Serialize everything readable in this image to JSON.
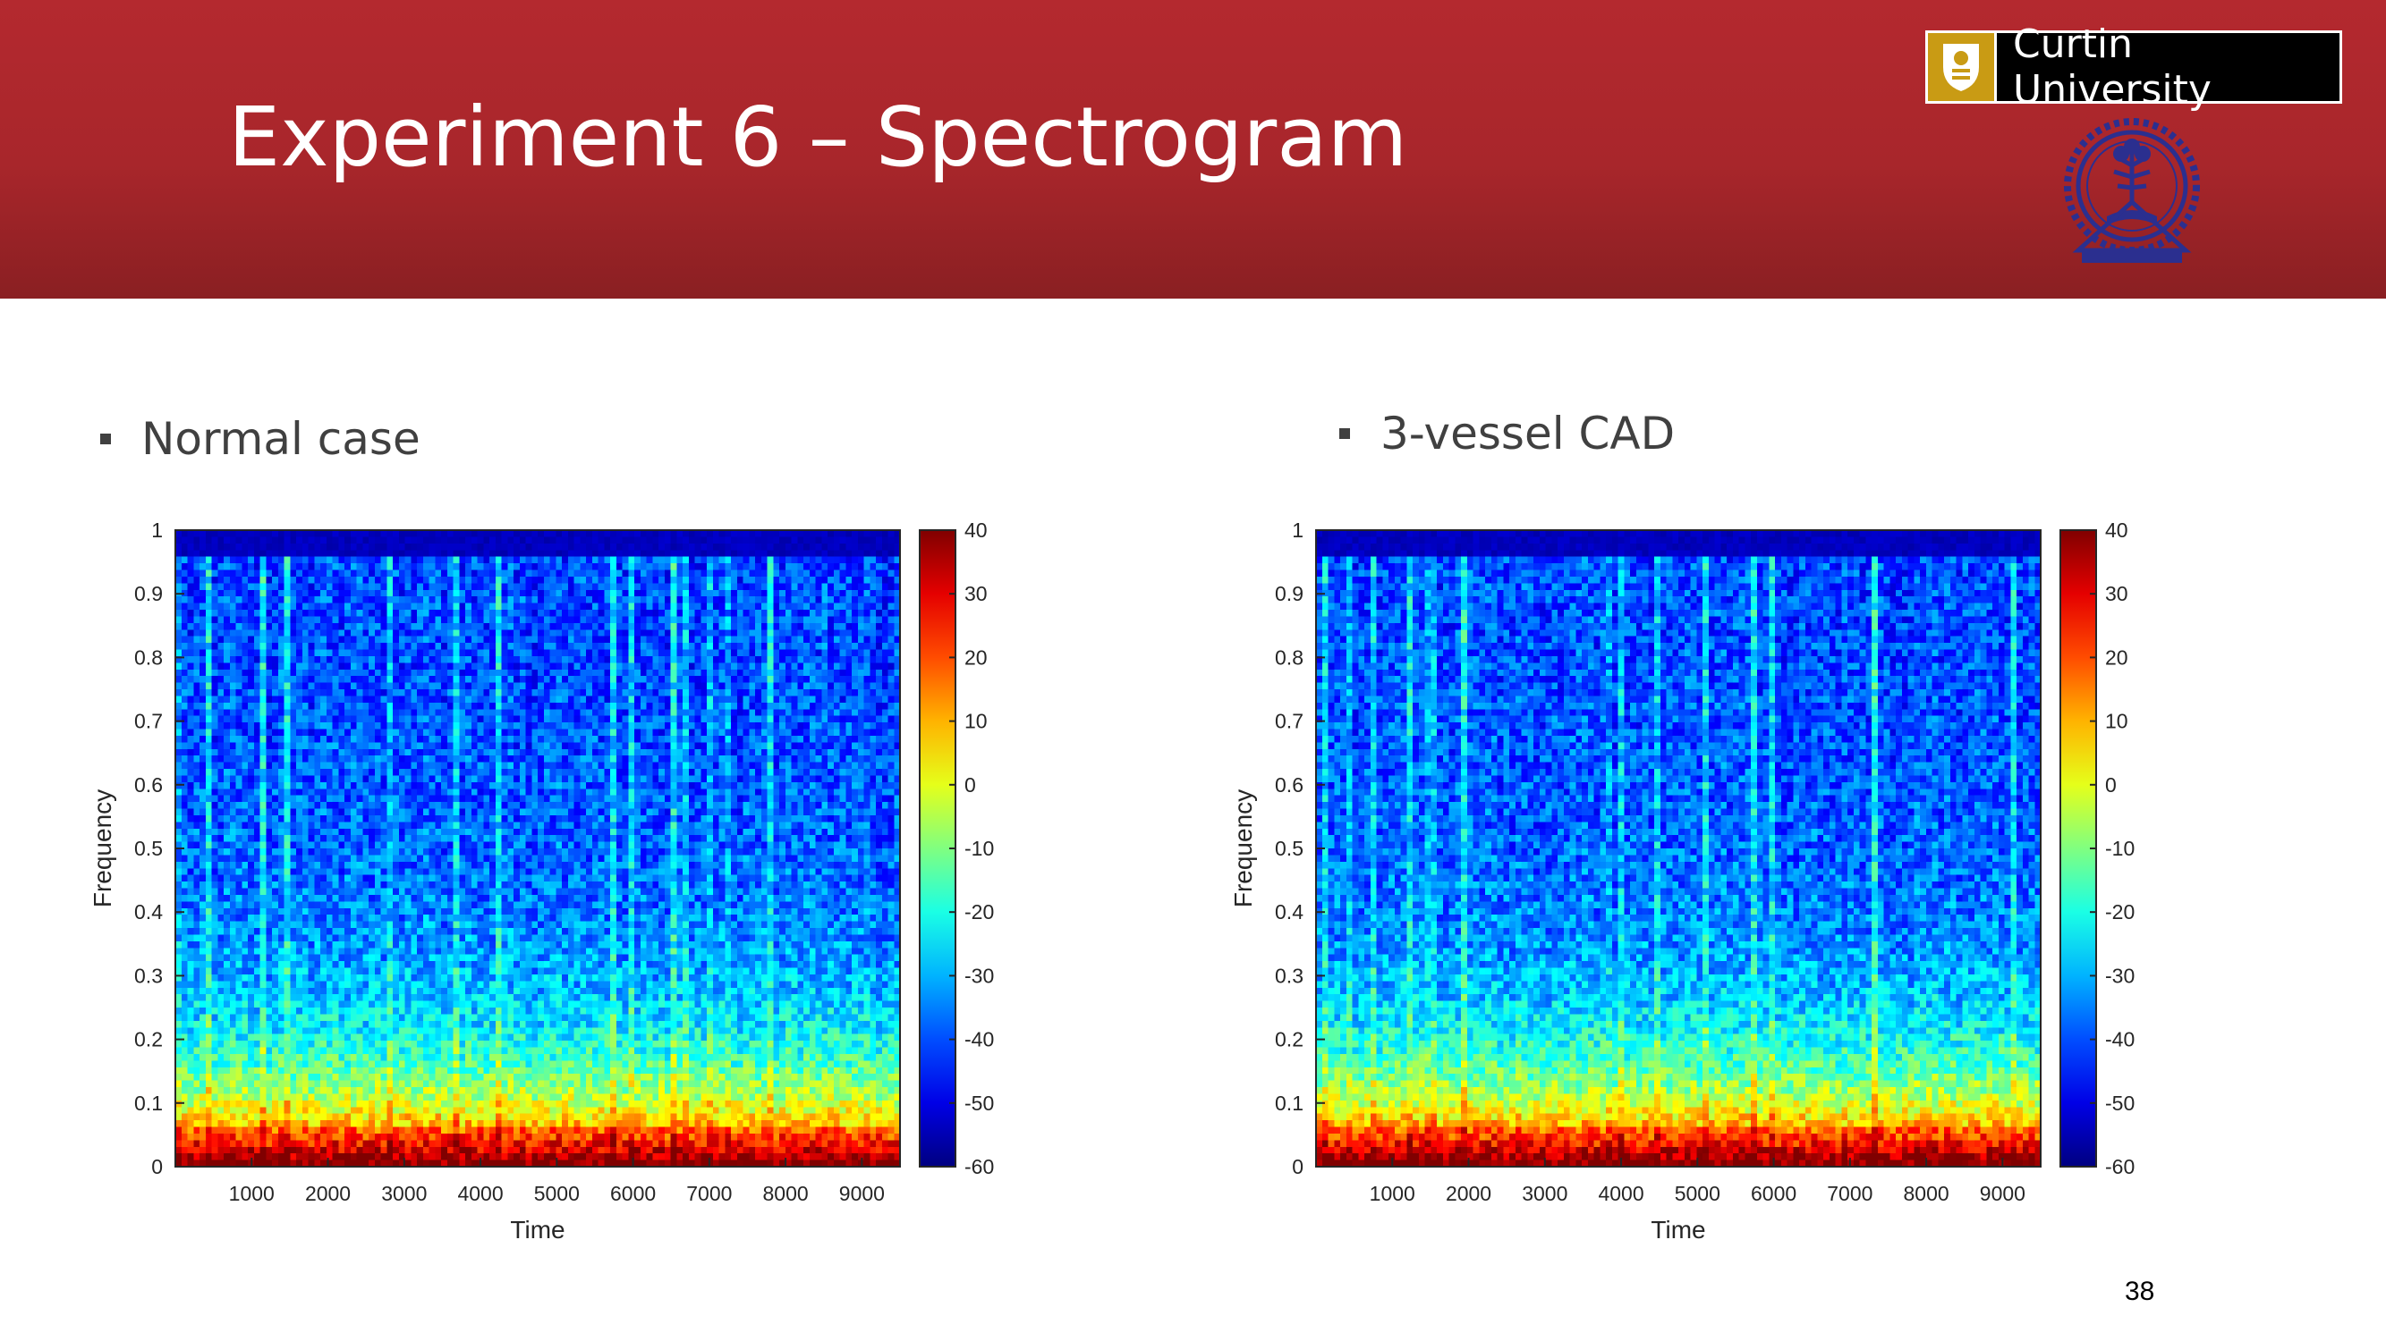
{
  "slide": {
    "title": "Experiment 6 – Spectrogram",
    "logo_text": "Curtin University",
    "page_number": "38"
  },
  "colors": {
    "header": "#b4292f",
    "title_text": "#ffffff",
    "body_text": "#404040",
    "logo_gold": "#c99b14",
    "seal_blue": "#2b2f8f"
  },
  "icons": [
    "curtin-shield-icon",
    "iit-seal-icon"
  ],
  "chart_data": [
    {
      "type": "heatmap",
      "caption": "Normal case",
      "xlabel": "Time",
      "ylabel": "Frequency",
      "xlim": [
        0,
        9500
      ],
      "ylim": [
        0,
        1
      ],
      "x_ticks": [
        "1000",
        "2000",
        "3000",
        "4000",
        "5000",
        "6000",
        "7000",
        "8000",
        "9000"
      ],
      "y_ticks": [
        "0",
        "0.1",
        "0.2",
        "0.3",
        "0.4",
        "0.5",
        "0.6",
        "0.7",
        "0.8",
        "0.9",
        "1"
      ],
      "colorbar": {
        "range": [
          -60,
          40
        ],
        "ticks": [
          "40",
          "30",
          "20",
          "10",
          "0",
          "-10",
          "-20",
          "-30",
          "-40",
          "-50",
          "-60"
        ],
        "colormap": "jet"
      }
    },
    {
      "type": "heatmap",
      "caption": "3-vessel CAD",
      "xlabel": "Time",
      "ylabel": "Frequency",
      "xlim": [
        0,
        9500
      ],
      "ylim": [
        0,
        1
      ],
      "x_ticks": [
        "1000",
        "2000",
        "3000",
        "4000",
        "5000",
        "6000",
        "7000",
        "8000",
        "9000"
      ],
      "y_ticks": [
        "0",
        "0.1",
        "0.2",
        "0.3",
        "0.4",
        "0.5",
        "0.6",
        "0.7",
        "0.8",
        "0.9",
        "1"
      ],
      "colorbar": {
        "range": [
          -60,
          40
        ],
        "ticks": [
          "40",
          "30",
          "20",
          "10",
          "0",
          "-10",
          "-20",
          "-30",
          "-40",
          "-50",
          "-60"
        ],
        "colormap": "jet"
      }
    }
  ]
}
